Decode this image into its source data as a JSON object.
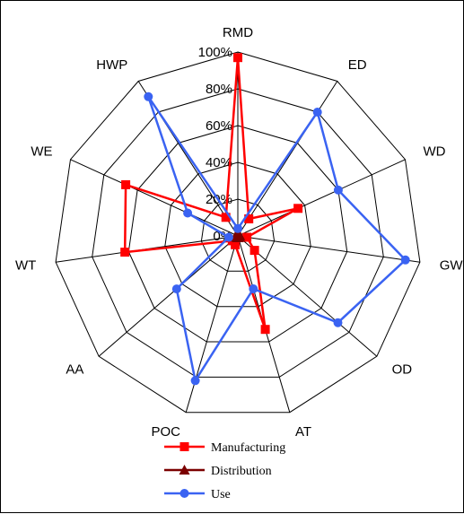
{
  "chart_data": {
    "type": "radar",
    "axes": [
      "RMD",
      "ED",
      "WD",
      "GW",
      "OD",
      "AT",
      "POC",
      "AA",
      "WT",
      "WE",
      "HWP"
    ],
    "tick_labels": [
      "0%",
      "20%",
      "40%",
      "60%",
      "80%",
      "100%"
    ],
    "rlim": [
      0,
      100
    ],
    "grid": true,
    "legend_position": "bottom",
    "series": [
      {
        "name": "Manufacturing",
        "color": "#ff0000",
        "marker": "square",
        "values": [
          97,
          11,
          36,
          5,
          12,
          53,
          5,
          4,
          62,
          67,
          12
        ]
      },
      {
        "name": "Distribution",
        "color": "#7b0000",
        "marker": "triangle",
        "values": [
          1,
          1,
          1,
          1,
          1,
          1,
          1,
          1,
          1,
          1,
          1
        ]
      },
      {
        "name": "Use",
        "color": "#3a63f2",
        "marker": "circle",
        "values": [
          4,
          80,
          60,
          92,
          72,
          30,
          82,
          44,
          5,
          30,
          90
        ]
      }
    ]
  }
}
